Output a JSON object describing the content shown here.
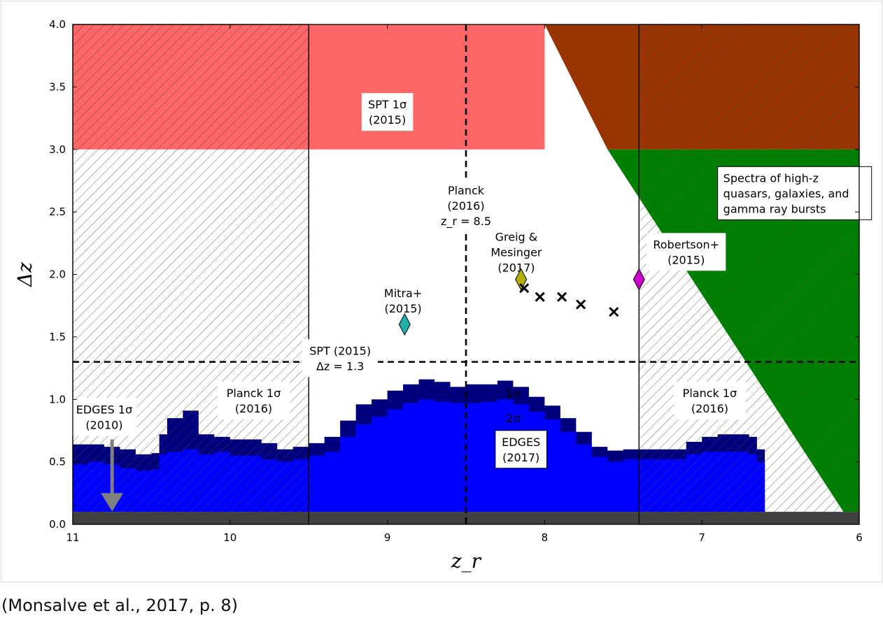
{
  "caption": "(Monsalve et al., 2017, p. 8)",
  "chart_data": {
    "type": "area",
    "xlabel": "z_r",
    "ylabel": "Δz",
    "xlim": [
      11,
      6
    ],
    "ylim": [
      0,
      4
    ],
    "x_ticks": [
      "11",
      "10",
      "9",
      "8",
      "7",
      "6"
    ],
    "y_ticks": [
      "0.0",
      "0.5",
      "1.0",
      "1.5",
      "2.0",
      "2.5",
      "3.0",
      "3.5",
      "4.0"
    ],
    "grid": false,
    "colors": {
      "spt_region": "#ff6666",
      "spectra_region": "#008000",
      "overlap_region": "#993300",
      "edges_1sigma": "#00007f",
      "edges_2sigma": "#0000ff",
      "edges2010_bar": "#404040",
      "arrow": "#808080",
      "mitra_marker": "#20b2aa",
      "greig_marker": "#b5b000",
      "robertson_marker": "#cc00cc"
    },
    "regions": [
      {
        "name": "SPT 1σ",
        "x_range": [
          9.5,
          8.0
        ],
        "y_range": [
          3.0,
          4.0
        ]
      },
      {
        "name": "Planck 1σ left",
        "x_range": [
          11,
          9.5
        ],
        "y_range": [
          0,
          4.0
        ]
      },
      {
        "name": "Planck 1σ right",
        "x_range": [
          7.4,
          6.0
        ],
        "y_range": [
          0,
          4.0
        ]
      },
      {
        "name": "Spectra",
        "polygon_lower_x_at_y0": 6.1,
        "x_at_y3": 7.6,
        "x_at_y4": 8.0
      }
    ],
    "reference_lines": [
      {
        "orientation": "vertical",
        "x": 8.5,
        "label": "Planck (2016) z_r = 8.5"
      },
      {
        "orientation": "horizontal",
        "y": 1.3,
        "label": "SPT (2015) Δz = 1.3"
      },
      {
        "orientation": "vertical",
        "x": 9.5
      },
      {
        "orientation": "vertical",
        "x": 7.4
      }
    ],
    "edges_2010_limit": {
      "x_range": [
        11,
        6
      ],
      "y": 0.1
    },
    "edges_1sigma_boundary": {
      "x": [
        11.0,
        10.9,
        10.8,
        10.7,
        10.6,
        10.5,
        10.45,
        10.4,
        10.3,
        10.2,
        10.1,
        10.0,
        9.9,
        9.8,
        9.7,
        9.6,
        9.5,
        9.4,
        9.3,
        9.2,
        9.1,
        9.0,
        8.9,
        8.8,
        8.7,
        8.6,
        8.5,
        8.4,
        8.3,
        8.2,
        8.1,
        8.0,
        7.9,
        7.8,
        7.7,
        7.6,
        7.5,
        7.4,
        7.3,
        7.2,
        7.1,
        7.0,
        6.9,
        6.8,
        6.7,
        6.65,
        6.6
      ],
      "y": [
        0.64,
        0.64,
        0.62,
        0.6,
        0.56,
        0.57,
        0.72,
        0.85,
        0.91,
        0.72,
        0.7,
        0.68,
        0.68,
        0.65,
        0.6,
        0.62,
        0.65,
        0.7,
        0.83,
        0.96,
        1.0,
        1.07,
        1.12,
        1.16,
        1.14,
        1.1,
        1.12,
        1.12,
        1.15,
        1.1,
        1.02,
        0.95,
        0.85,
        0.74,
        0.62,
        0.59,
        0.6,
        0.6,
        0.6,
        0.6,
        0.66,
        0.7,
        0.72,
        0.72,
        0.7,
        0.6,
        0.1
      ]
    },
    "edges_2sigma_boundary": {
      "x": [
        11.0,
        10.9,
        10.8,
        10.7,
        10.6,
        10.5,
        10.45,
        10.4,
        10.3,
        10.2,
        10.1,
        10.0,
        9.9,
        9.8,
        9.7,
        9.6,
        9.5,
        9.4,
        9.3,
        9.2,
        9.1,
        9.0,
        8.9,
        8.8,
        8.7,
        8.6,
        8.5,
        8.4,
        8.3,
        8.2,
        8.1,
        8.0,
        7.9,
        7.8,
        7.7,
        7.6,
        7.5,
        7.4,
        7.3,
        7.2,
        7.1,
        7.0,
        6.9,
        6.8,
        6.7,
        6.65,
        6.6
      ],
      "y": [
        0.48,
        0.5,
        0.48,
        0.45,
        0.43,
        0.44,
        0.56,
        0.58,
        0.6,
        0.56,
        0.58,
        0.55,
        0.55,
        0.52,
        0.5,
        0.52,
        0.55,
        0.58,
        0.7,
        0.8,
        0.86,
        0.92,
        0.97,
        1.0,
        0.98,
        0.97,
        0.97,
        0.98,
        1.0,
        0.96,
        0.9,
        0.84,
        0.74,
        0.64,
        0.54,
        0.5,
        0.52,
        0.52,
        0.52,
        0.52,
        0.56,
        0.58,
        0.58,
        0.58,
        0.56,
        0.5,
        0.1
      ]
    },
    "markers": [
      {
        "name": "Mitra+ (2015)",
        "shape": "diamond",
        "x": 8.89,
        "y": 1.6
      },
      {
        "name": "Greig & Mesinger (2017)",
        "shape": "diamond",
        "x": 8.15,
        "y": 1.96
      },
      {
        "name": "Robertson+ (2015)",
        "shape": "diamond",
        "x": 7.4,
        "y": 1.96
      },
      {
        "name": "x1",
        "shape": "x",
        "x": 8.13,
        "y": 1.89
      },
      {
        "name": "x2",
        "shape": "x",
        "x": 8.03,
        "y": 1.82
      },
      {
        "name": "x3",
        "shape": "x",
        "x": 7.89,
        "y": 1.82
      },
      {
        "name": "x4",
        "shape": "x",
        "x": 7.77,
        "y": 1.76
      },
      {
        "name": "x5",
        "shape": "x",
        "x": 7.56,
        "y": 1.7
      }
    ],
    "annotations": [
      {
        "id": "spt",
        "lines": [
          "SPT 1σ",
          "(2015)"
        ],
        "x": 9.0,
        "y": 3.3
      },
      {
        "id": "planck_line",
        "lines": [
          "Planck",
          "(2016)",
          "z_r = 8.5"
        ],
        "x": 8.5,
        "y": 2.55
      },
      {
        "id": "spectra",
        "lines": [
          "Spectra of high-z",
          "quasars, galaxies, and",
          "gamma ray bursts"
        ],
        "x": 6.9,
        "y": 2.65
      },
      {
        "id": "greig",
        "lines": [
          "Greig &",
          "Mesinger",
          "(2017)"
        ],
        "x": 8.18,
        "y": 2.18
      },
      {
        "id": "robertson",
        "lines": [
          "Robertson+",
          "(2015)"
        ],
        "x": 7.1,
        "y": 2.18
      },
      {
        "id": "mitra",
        "lines": [
          "Mitra+",
          "(2015)"
        ],
        "x": 8.9,
        "y": 1.79
      },
      {
        "id": "spt_line",
        "lines": [
          "SPT (2015)",
          "Δz = 1.3"
        ],
        "x": 9.3,
        "y": 1.33
      },
      {
        "id": "planck_left",
        "lines": [
          "Planck 1σ",
          "(2016)"
        ],
        "x": 9.85,
        "y": 0.99
      },
      {
        "id": "planck_right",
        "lines": [
          "Planck 1σ",
          "(2016)"
        ],
        "x": 6.95,
        "y": 0.99
      },
      {
        "id": "edges2010",
        "lines": [
          "EDGES 1σ",
          "(2010)"
        ],
        "x": 10.8,
        "y": 0.86
      },
      {
        "id": "sigma1",
        "lines": [
          "1σ"
        ],
        "x": 8.2,
        "y": 1.05
      },
      {
        "id": "sigma2",
        "lines": [
          "2σ"
        ],
        "x": 8.2,
        "y": 0.85
      },
      {
        "id": "edges2017",
        "lines": [
          "EDGES",
          "(2017)"
        ],
        "x": 8.15,
        "y": 0.6
      }
    ]
  }
}
